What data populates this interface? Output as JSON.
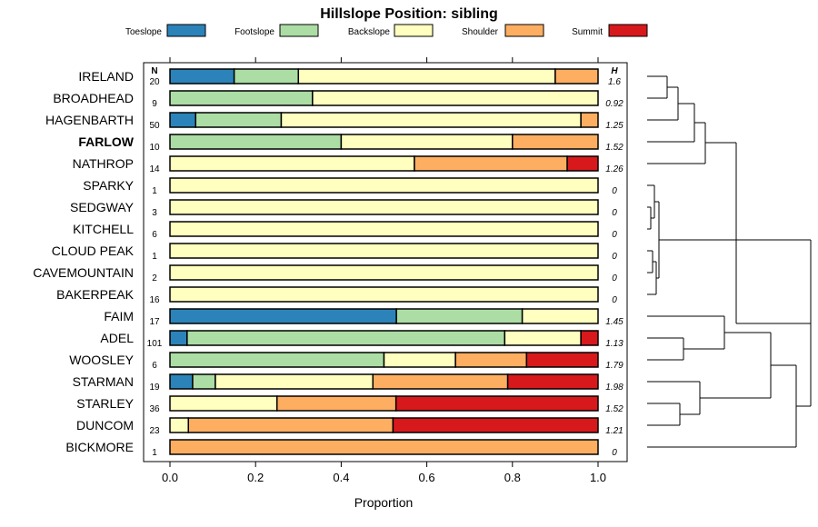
{
  "chart_data": {
    "type": "bar",
    "orientation": "horizontal-stacked",
    "title": "Hillslope Position: sibling",
    "xlabel": "Proportion",
    "xlim": [
      0,
      1
    ],
    "x_ticks": [
      "0.0",
      "0.2",
      "0.4",
      "0.6",
      "0.8",
      "1.0"
    ],
    "n_header": "N",
    "h_header": "H",
    "legend_placement": "top",
    "legend": [
      {
        "name": "Toeslope",
        "color": "#2b83ba"
      },
      {
        "name": "Footslope",
        "color": "#abdda4"
      },
      {
        "name": "Backslope",
        "color": "#ffffbf"
      },
      {
        "name": "Shoulder",
        "color": "#fdae61"
      },
      {
        "name": "Summit",
        "color": "#d7191c"
      }
    ],
    "rows": [
      {
        "label": "IRELAND",
        "bold": false,
        "n": "20",
        "h": "1.6",
        "values": [
          0.15,
          0.15,
          0.6,
          0.1,
          0.0
        ]
      },
      {
        "label": "BROADHEAD",
        "bold": false,
        "n": "9",
        "h": "0.92",
        "values": [
          0.0,
          0.333,
          0.667,
          0.0,
          0.0
        ]
      },
      {
        "label": "HAGENBARTH",
        "bold": false,
        "n": "50",
        "h": "1.25",
        "values": [
          0.06,
          0.2,
          0.7,
          0.04,
          0.0
        ]
      },
      {
        "label": "FARLOW",
        "bold": true,
        "n": "10",
        "h": "1.52",
        "values": [
          0.0,
          0.4,
          0.4,
          0.2,
          0.0
        ]
      },
      {
        "label": "NATHROP",
        "bold": false,
        "n": "14",
        "h": "1.26",
        "values": [
          0.0,
          0.0,
          0.571,
          0.357,
          0.072
        ]
      },
      {
        "label": "SPARKY",
        "bold": false,
        "n": "1",
        "h": "0",
        "values": [
          0,
          0,
          1,
          0,
          0
        ]
      },
      {
        "label": "SEDGWAY",
        "bold": false,
        "n": "3",
        "h": "0",
        "values": [
          0,
          0,
          1,
          0,
          0
        ]
      },
      {
        "label": "KITCHELL",
        "bold": false,
        "n": "6",
        "h": "0",
        "values": [
          0,
          0,
          1,
          0,
          0
        ]
      },
      {
        "label": "CLOUD PEAK",
        "bold": false,
        "n": "1",
        "h": "0",
        "values": [
          0,
          0,
          1,
          0,
          0
        ]
      },
      {
        "label": "CAVEMOUNTAIN",
        "bold": false,
        "n": "2",
        "h": "0",
        "values": [
          0,
          0,
          1,
          0,
          0
        ]
      },
      {
        "label": "BAKERPEAK",
        "bold": false,
        "n": "16",
        "h": "0",
        "values": [
          0,
          0,
          1,
          0,
          0
        ]
      },
      {
        "label": "FAIM",
        "bold": false,
        "n": "17",
        "h": "1.45",
        "values": [
          0.529,
          0.294,
          0.177,
          0.0,
          0.0
        ]
      },
      {
        "label": "ADEL",
        "bold": false,
        "n": "101",
        "h": "1.13",
        "values": [
          0.04,
          0.742,
          0.178,
          0.0,
          0.04
        ]
      },
      {
        "label": "WOOSLEY",
        "bold": false,
        "n": "6",
        "h": "1.79",
        "values": [
          0.0,
          0.5,
          0.167,
          0.166,
          0.167
        ]
      },
      {
        "label": "STARMAN",
        "bold": false,
        "n": "19",
        "h": "1.98",
        "values": [
          0.053,
          0.053,
          0.368,
          0.315,
          0.211
        ]
      },
      {
        "label": "STARLEY",
        "bold": false,
        "n": "36",
        "h": "1.52",
        "values": [
          0.0,
          0.0,
          0.25,
          0.278,
          0.472
        ]
      },
      {
        "label": "DUNCOM",
        "bold": false,
        "n": "23",
        "h": "1.21",
        "values": [
          0.0,
          0.0,
          0.043,
          0.478,
          0.479
        ]
      },
      {
        "label": "BICKMORE",
        "bold": false,
        "n": "1",
        "h": "0",
        "values": [
          0,
          0,
          0,
          1,
          0
        ]
      }
    ]
  }
}
